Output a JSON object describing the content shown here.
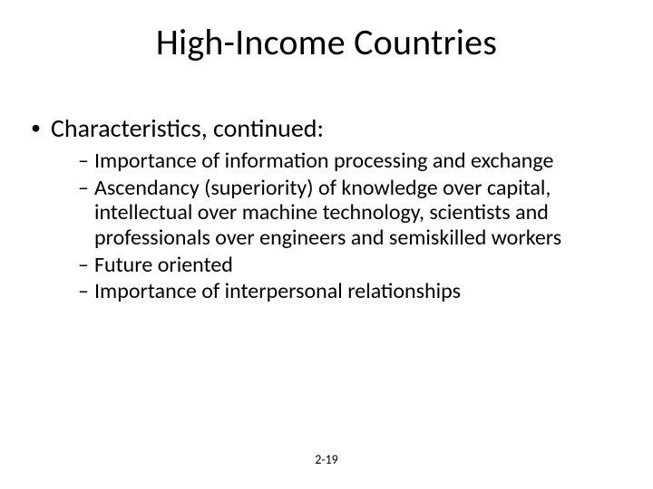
{
  "title": "High-Income Countries",
  "body": {
    "item": {
      "text": "Characteristics, continued:",
      "sub": [
        "Importance of information processing and exchange",
        "Ascendancy (superiority) of knowledge over capital, intellectual over machine technology, scientists and professionals over engineers and semiskilled workers",
        "Future oriented",
        "Importance of interpersonal relationships"
      ]
    }
  },
  "page_number": "2-19",
  "styling": {
    "background_color": "#ffffff",
    "text_color": "#000000",
    "title_fontsize": 40,
    "level1_fontsize": 28,
    "level2_fontsize": 24,
    "pagenum_fontsize": 14,
    "bullet_char": "•",
    "dash_char": "–",
    "font_family": "Calibri"
  }
}
